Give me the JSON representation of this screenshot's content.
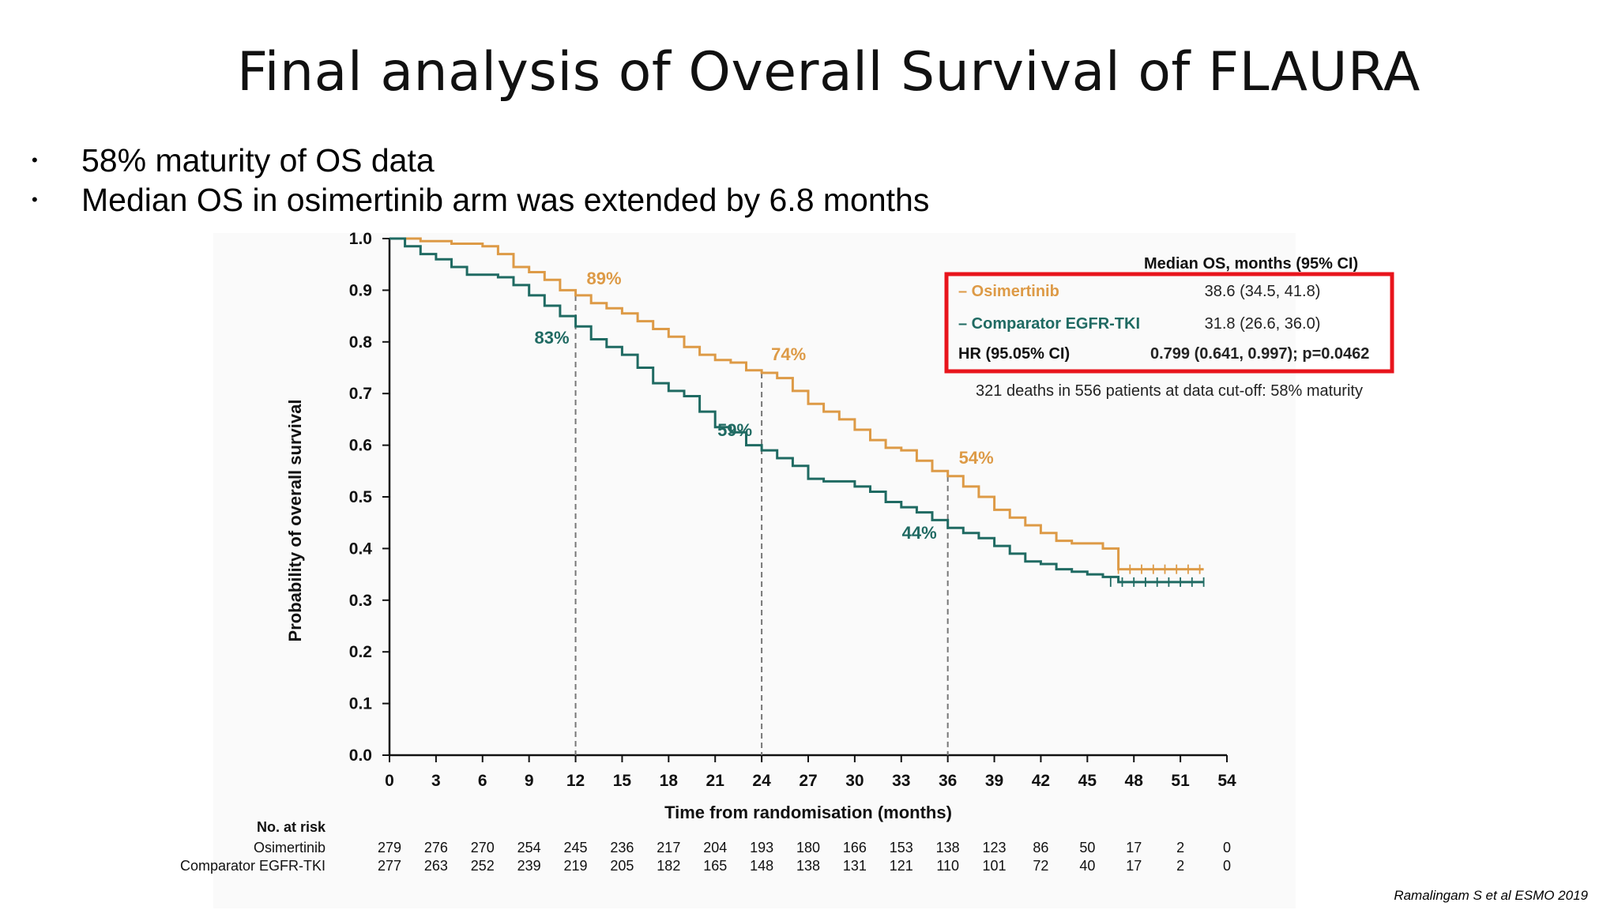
{
  "slide": {
    "title": "Final analysis of Overall Survival of FLAURA",
    "bullets": [
      "58% maturity of OS data",
      "Median OS in osimertinib arm was extended by 6.8 months"
    ],
    "bullet_symbol": "•",
    "citation": "Ramalingam S et al ESMO 2019"
  },
  "chart_data": {
    "type": "line",
    "subtype": "kaplan-meier",
    "xlabel": "Time from randomisation (months)",
    "ylabel": "Probability of overall survival",
    "xlim": [
      0,
      54
    ],
    "ylim": [
      0.0,
      1.0
    ],
    "xticks": [
      0,
      3,
      6,
      9,
      12,
      15,
      18,
      21,
      24,
      27,
      30,
      33,
      36,
      39,
      42,
      45,
      48,
      51,
      54
    ],
    "yticks": [
      "0.0",
      "0.1",
      "0.2",
      "0.3",
      "0.4",
      "0.5",
      "0.6",
      "0.7",
      "0.8",
      "0.9",
      "1.0"
    ],
    "grid": false,
    "reference_lines_x": [
      12,
      24,
      36
    ],
    "series": [
      {
        "name": "Osimertinib",
        "color": "#dd9a46",
        "points": [
          [
            0,
            1.0
          ],
          [
            2,
            0.995
          ],
          [
            4,
            0.99
          ],
          [
            6,
            0.985
          ],
          [
            7,
            0.97
          ],
          [
            8,
            0.945
          ],
          [
            9,
            0.935
          ],
          [
            10,
            0.92
          ],
          [
            11,
            0.9
          ],
          [
            12,
            0.89
          ],
          [
            13,
            0.875
          ],
          [
            14,
            0.865
          ],
          [
            15,
            0.855
          ],
          [
            16,
            0.84
          ],
          [
            17,
            0.825
          ],
          [
            18,
            0.81
          ],
          [
            19,
            0.79
          ],
          [
            20,
            0.775
          ],
          [
            21,
            0.765
          ],
          [
            22,
            0.76
          ],
          [
            23,
            0.745
          ],
          [
            24,
            0.74
          ],
          [
            25,
            0.73
          ],
          [
            26,
            0.705
          ],
          [
            27,
            0.68
          ],
          [
            28,
            0.665
          ],
          [
            29,
            0.65
          ],
          [
            30,
            0.63
          ],
          [
            31,
            0.61
          ],
          [
            32,
            0.595
          ],
          [
            33,
            0.59
          ],
          [
            34,
            0.57
          ],
          [
            35,
            0.55
          ],
          [
            36,
            0.54
          ],
          [
            37,
            0.52
          ],
          [
            38,
            0.5
          ],
          [
            39,
            0.475
          ],
          [
            40,
            0.46
          ],
          [
            41,
            0.445
          ],
          [
            42,
            0.43
          ],
          [
            43,
            0.415
          ],
          [
            44,
            0.41
          ],
          [
            46,
            0.4
          ],
          [
            47,
            0.36
          ],
          [
            50,
            0.36
          ],
          [
            52.5,
            0.36
          ]
        ]
      },
      {
        "name": "Comparator EGFR-TKI",
        "color": "#1f6a62",
        "points": [
          [
            0,
            1.0
          ],
          [
            1,
            0.985
          ],
          [
            2,
            0.97
          ],
          [
            3,
            0.96
          ],
          [
            4,
            0.945
          ],
          [
            5,
            0.93
          ],
          [
            6,
            0.93
          ],
          [
            7,
            0.925
          ],
          [
            8,
            0.91
          ],
          [
            9,
            0.89
          ],
          [
            10,
            0.87
          ],
          [
            11,
            0.85
          ],
          [
            12,
            0.83
          ],
          [
            13,
            0.805
          ],
          [
            14,
            0.79
          ],
          [
            15,
            0.775
          ],
          [
            16,
            0.75
          ],
          [
            17,
            0.72
          ],
          [
            18,
            0.705
          ],
          [
            19,
            0.695
          ],
          [
            20,
            0.665
          ],
          [
            21,
            0.635
          ],
          [
            22,
            0.625
          ],
          [
            23,
            0.6
          ],
          [
            24,
            0.59
          ],
          [
            25,
            0.575
          ],
          [
            26,
            0.56
          ],
          [
            27,
            0.535
          ],
          [
            28,
            0.53
          ],
          [
            30,
            0.52
          ],
          [
            31,
            0.51
          ],
          [
            32,
            0.49
          ],
          [
            33,
            0.48
          ],
          [
            34,
            0.47
          ],
          [
            35,
            0.455
          ],
          [
            36,
            0.44
          ],
          [
            37,
            0.43
          ],
          [
            38,
            0.42
          ],
          [
            39,
            0.405
          ],
          [
            40,
            0.39
          ],
          [
            41,
            0.375
          ],
          [
            42,
            0.37
          ],
          [
            43,
            0.36
          ],
          [
            44,
            0.355
          ],
          [
            45,
            0.35
          ],
          [
            46,
            0.345
          ],
          [
            47,
            0.335
          ],
          [
            48,
            0.335
          ],
          [
            52.5,
            0.335
          ]
        ]
      }
    ],
    "annotations": [
      {
        "series": "Osimertinib",
        "x": 12,
        "y": 0.89,
        "label": "89%"
      },
      {
        "series": "Comparator EGFR-TKI",
        "x": 12,
        "y": 0.83,
        "label": "83%"
      },
      {
        "series": "Osimertinib",
        "x": 24,
        "y": 0.74,
        "label": "74%"
      },
      {
        "series": "Comparator EGFR-TKI",
        "x": 24,
        "y": 0.59,
        "label": "59%"
      },
      {
        "series": "Osimertinib",
        "x": 36,
        "y": 0.54,
        "label": "54%"
      },
      {
        "series": "Comparator EGFR-TKI",
        "x": 36,
        "y": 0.44,
        "label": "44%"
      }
    ],
    "legend_table": {
      "header": "Median OS, months (95% CI)",
      "rows": [
        {
          "label": "– Osimertinib",
          "value": "38.6 (34.5, 41.8)",
          "color": "#dd9a46",
          "bold_value": false
        },
        {
          "label": "– Comparator EGFR-TKI",
          "value": "31.8 (26.6, 36.0)",
          "color": "#1f6a62",
          "bold_value": false
        },
        {
          "label": "HR (95.05% CI)",
          "value": "0.799 (0.641, 0.997); p=0.0462",
          "color": "#111111",
          "bold_value": true
        }
      ],
      "highlight_color": "#e8141c",
      "note": "321 deaths in 556 patients at data cut-off: 58% maturity",
      "placement": "top-right"
    },
    "risk_table": {
      "header": "No. at risk",
      "rows": [
        {
          "label": "Osimertinib",
          "values": [
            279,
            276,
            270,
            254,
            245,
            236,
            217,
            204,
            193,
            180,
            166,
            153,
            138,
            123,
            86,
            50,
            17,
            2,
            0
          ]
        },
        {
          "label": "Comparator EGFR-TKI",
          "values": [
            277,
            263,
            252,
            239,
            219,
            205,
            182,
            165,
            148,
            138,
            131,
            121,
            110,
            101,
            72,
            40,
            17,
            2,
            0
          ]
        }
      ]
    }
  }
}
